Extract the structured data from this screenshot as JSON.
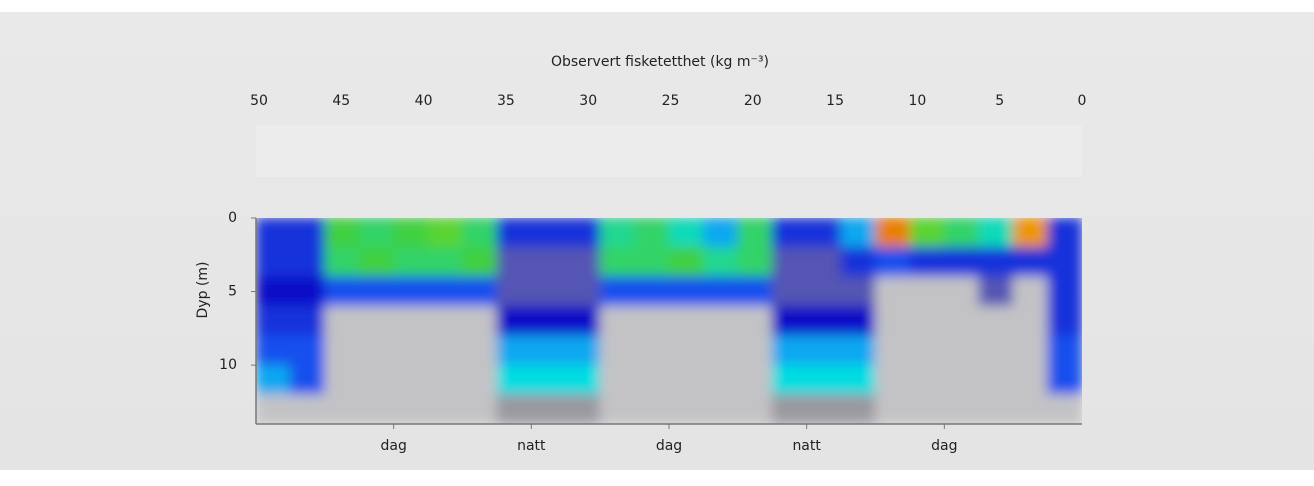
{
  "chart_data": {
    "type": "heatmap",
    "colorbar_title": "Observert fisketetthet (kg m⁻³)",
    "colorbar_lim": [
      50,
      0
    ],
    "colorbar_ticks": [
      50,
      45,
      40,
      35,
      30,
      25,
      20,
      15,
      10,
      5,
      0
    ],
    "colormap": [
      {
        "value": 0,
        "color": "#ececec"
      },
      {
        "value": 2,
        "color": "#9a9aa0"
      },
      {
        "value": 4,
        "color": "#1010c8"
      },
      {
        "value": 7,
        "color": "#1e70ff"
      },
      {
        "value": 9,
        "color": "#00dde0"
      },
      {
        "value": 13,
        "color": "#40d040"
      },
      {
        "value": 17,
        "color": "#a8e000"
      },
      {
        "value": 20,
        "color": "#e0e000"
      },
      {
        "value": 25,
        "color": "#f0a000"
      },
      {
        "value": 32,
        "color": "#e05000"
      },
      {
        "value": 40,
        "color": "#e00000"
      },
      {
        "value": 45,
        "color": "#802020"
      },
      {
        "value": 50,
        "color": "#000000"
      }
    ],
    "ylabel": "Dyp (m)",
    "ylim": [
      0,
      14
    ],
    "yticks": [
      0,
      5,
      10
    ],
    "xlim": [
      0,
      24
    ],
    "xticks": [
      {
        "value": 4,
        "label": "dag"
      },
      {
        "value": 8,
        "label": "natt"
      },
      {
        "value": 12,
        "label": "dag"
      },
      {
        "value": 16,
        "label": "natt"
      },
      {
        "value": 20,
        "label": "dag"
      }
    ],
    "x_bins": [
      0,
      1,
      2,
      3,
      4,
      5,
      6,
      7,
      8,
      9,
      10,
      11,
      12,
      13,
      14,
      15,
      16,
      17,
      18,
      19,
      20,
      21,
      22,
      23,
      24
    ],
    "y_bins": [
      0,
      2,
      4,
      6,
      8,
      10,
      12,
      14
    ],
    "z": [
      [
        5,
        5,
        13,
        12,
        13,
        14,
        12,
        5,
        5,
        5,
        11,
        12,
        10,
        8,
        12,
        5,
        5,
        8,
        28,
        14,
        12,
        10,
        26,
        5
      ],
      [
        5,
        5,
        12,
        13,
        12,
        12,
        13,
        3,
        3,
        3,
        12,
        12,
        13,
        11,
        12,
        3,
        3,
        5,
        6,
        5,
        5,
        5,
        5,
        5
      ],
      [
        4,
        4,
        6,
        6,
        6,
        6,
        6,
        3,
        3,
        3,
        6,
        6,
        6,
        6,
        6,
        3,
        3,
        3,
        1,
        1,
        1,
        3,
        1,
        5
      ],
      [
        5,
        5,
        1,
        1,
        1,
        1,
        1,
        4,
        4,
        4,
        1,
        1,
        1,
        1,
        1,
        4,
        4,
        4,
        1,
        1,
        1,
        1,
        1,
        5
      ],
      [
        6,
        6,
        1,
        1,
        1,
        1,
        1,
        8,
        8,
        8,
        1,
        1,
        1,
        1,
        1,
        8,
        8,
        8,
        1,
        1,
        1,
        1,
        1,
        6
      ],
      [
        8,
        6,
        1,
        1,
        1,
        1,
        1,
        9,
        9,
        9,
        1,
        1,
        1,
        1,
        1,
        9,
        9,
        9,
        1,
        1,
        1,
        1,
        1,
        6
      ],
      [
        1,
        1,
        1,
        1,
        1,
        1,
        1,
        2,
        2,
        2,
        1,
        1,
        1,
        1,
        1,
        2,
        2,
        2,
        1,
        1,
        1,
        1,
        1,
        1
      ]
    ]
  }
}
